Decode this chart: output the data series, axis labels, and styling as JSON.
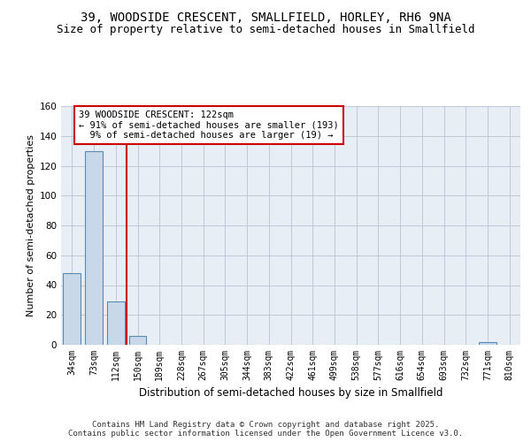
{
  "title1": "39, WOODSIDE CRESCENT, SMALLFIELD, HORLEY, RH6 9NA",
  "title2": "Size of property relative to semi-detached houses in Smallfield",
  "xlabel": "Distribution of semi-detached houses by size in Smallfield",
  "ylabel": "Number of semi-detached properties",
  "categories": [
    "34sqm",
    "73sqm",
    "112sqm",
    "150sqm",
    "189sqm",
    "228sqm",
    "267sqm",
    "305sqm",
    "344sqm",
    "383sqm",
    "422sqm",
    "461sqm",
    "499sqm",
    "538sqm",
    "577sqm",
    "616sqm",
    "654sqm",
    "693sqm",
    "732sqm",
    "771sqm",
    "810sqm"
  ],
  "values": [
    48,
    130,
    29,
    6,
    0,
    0,
    0,
    0,
    0,
    0,
    0,
    0,
    0,
    0,
    0,
    0,
    0,
    0,
    0,
    2,
    0
  ],
  "bar_color": "#c8d8e8",
  "bar_edge_color": "#5a8ab0",
  "grid_color": "#c0c8d8",
  "background_color": "#e8eef5",
  "vline_color": "#cc0000",
  "annotation_text": "39 WOODSIDE CRESCENT: 122sqm\n← 91% of semi-detached houses are smaller (193)\n  9% of semi-detached houses are larger (19) →",
  "annotation_box_color": "#ffffff",
  "annotation_box_edge": "#cc0000",
  "ylim": [
    0,
    160
  ],
  "yticks": [
    0,
    20,
    40,
    60,
    80,
    100,
    120,
    140,
    160
  ],
  "footer": "Contains HM Land Registry data © Crown copyright and database right 2025.\nContains public sector information licensed under the Open Government Licence v3.0.",
  "title_fontsize": 10,
  "subtitle_fontsize": 9,
  "tick_fontsize": 7,
  "annotation_fontsize": 7.5,
  "ylabel_fontsize": 8,
  "xlabel_fontsize": 8.5
}
